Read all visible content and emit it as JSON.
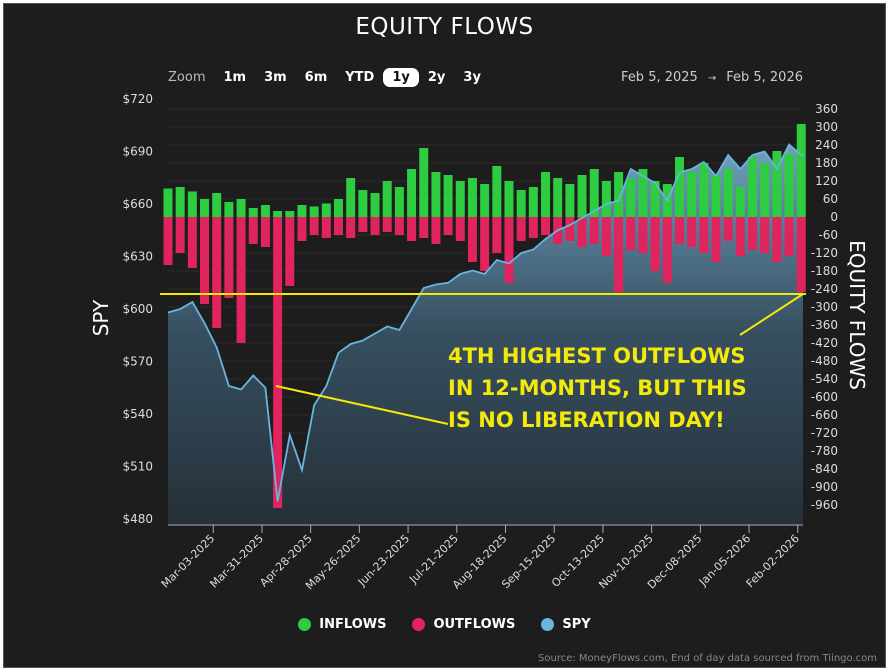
{
  "title": "EQUITY FLOWS",
  "zoom": {
    "label": "Zoom",
    "buttons": [
      "1m",
      "3m",
      "6m",
      "YTD",
      "1y",
      "2y",
      "3y"
    ],
    "active": "1y"
  },
  "range": {
    "from": "Feb 5, 2025",
    "arrow": "→",
    "to": "Feb 5, 2026"
  },
  "legend": [
    {
      "label": "INFLOWS",
      "color": "#2ecc40"
    },
    {
      "label": "OUTFLOWS",
      "color": "#e0245e"
    },
    {
      "label": "SPY",
      "color": "#6ab4e0"
    }
  ],
  "annotation": {
    "lines": [
      "4TH HIGHEST OUTFLOWS",
      "IN 12-MONTHS, BUT THIS",
      "IS NO LIBERATION DAY!"
    ],
    "color": "#f5e90a",
    "threshold": -250
  },
  "source": "Source: MoneyFlows.com, End of day data sourced from Tiingo.com",
  "chart_data": {
    "type": "bar+area",
    "title": "EQUITY FLOWS",
    "left_axis": {
      "label": "SPY",
      "ticks": [
        "$720",
        "$690",
        "$660",
        "$630",
        "$600",
        "$570",
        "$540",
        "$510",
        "$480"
      ],
      "range": [
        480,
        720
      ]
    },
    "right_axis": {
      "label": "EQUITY FLOWS",
      "ticks": [
        360,
        300,
        240,
        180,
        120,
        60,
        0,
        -60,
        -120,
        -180,
        -240,
        -300,
        -360,
        -420,
        -480,
        -540,
        -600,
        -660,
        -720,
        -780,
        -840,
        -900,
        -960
      ],
      "range": [
        -960,
        360
      ]
    },
    "x_ticks": [
      "Mar-03-2025",
      "Mar-31-2025",
      "Apr-28-2025",
      "May-26-2025",
      "Jun-23-2025",
      "Jul-21-2025",
      "Aug-18-2025",
      "Sep-15-2025",
      "Oct-13-2025",
      "Nov-10-2025",
      "Dec-08-2025",
      "Jan-05-2026",
      "Feb-02-2026"
    ],
    "grid": true,
    "legend_position": "bottom",
    "points": [
      {
        "date": "2025-02-05",
        "spy": 598,
        "inflow": 95,
        "outflow": -160
      },
      {
        "date": "2025-02-12",
        "spy": 600,
        "inflow": 100,
        "outflow": -120
      },
      {
        "date": "2025-02-19",
        "spy": 604,
        "inflow": 85,
        "outflow": -170
      },
      {
        "date": "2025-02-26",
        "spy": 592,
        "inflow": 60,
        "outflow": -290
      },
      {
        "date": "2025-03-05",
        "spy": 578,
        "inflow": 80,
        "outflow": -370
      },
      {
        "date": "2025-03-12",
        "spy": 556,
        "inflow": 50,
        "outflow": -270
      },
      {
        "date": "2025-03-19",
        "spy": 554,
        "inflow": 60,
        "outflow": -420
      },
      {
        "date": "2025-03-26",
        "spy": 562,
        "inflow": 30,
        "outflow": -90
      },
      {
        "date": "2025-04-02",
        "spy": 555,
        "inflow": 40,
        "outflow": -100
      },
      {
        "date": "2025-04-09",
        "spy": 490,
        "inflow": 20,
        "outflow": -970
      },
      {
        "date": "2025-04-16",
        "spy": 528,
        "inflow": 20,
        "outflow": -230
      },
      {
        "date": "2025-04-23",
        "spy": 508,
        "inflow": 40,
        "outflow": -80
      },
      {
        "date": "2025-04-30",
        "spy": 545,
        "inflow": 35,
        "outflow": -60
      },
      {
        "date": "2025-05-07",
        "spy": 556,
        "inflow": 45,
        "outflow": -70
      },
      {
        "date": "2025-05-14",
        "spy": 575,
        "inflow": 60,
        "outflow": -60
      },
      {
        "date": "2025-05-21",
        "spy": 580,
        "inflow": 130,
        "outflow": -70
      },
      {
        "date": "2025-05-28",
        "spy": 582,
        "inflow": 90,
        "outflow": -50
      },
      {
        "date": "2025-06-04",
        "spy": 586,
        "inflow": 80,
        "outflow": -60
      },
      {
        "date": "2025-06-11",
        "spy": 590,
        "inflow": 120,
        "outflow": -50
      },
      {
        "date": "2025-06-18",
        "spy": 588,
        "inflow": 100,
        "outflow": -60
      },
      {
        "date": "2025-06-25",
        "spy": 600,
        "inflow": 160,
        "outflow": -80
      },
      {
        "date": "2025-07-02",
        "spy": 612,
        "inflow": 230,
        "outflow": -70
      },
      {
        "date": "2025-07-09",
        "spy": 614,
        "inflow": 150,
        "outflow": -90
      },
      {
        "date": "2025-07-16",
        "spy": 615,
        "inflow": 140,
        "outflow": -60
      },
      {
        "date": "2025-07-23",
        "spy": 620,
        "inflow": 120,
        "outflow": -80
      },
      {
        "date": "2025-07-30",
        "spy": 622,
        "inflow": 130,
        "outflow": -150
      },
      {
        "date": "2025-08-06",
        "spy": 620,
        "inflow": 110,
        "outflow": -180
      },
      {
        "date": "2025-08-13",
        "spy": 628,
        "inflow": 170,
        "outflow": -120
      },
      {
        "date": "2025-08-20",
        "spy": 626,
        "inflow": 120,
        "outflow": -220
      },
      {
        "date": "2025-08-27",
        "spy": 632,
        "inflow": 90,
        "outflow": -80
      },
      {
        "date": "2025-09-03",
        "spy": 634,
        "inflow": 100,
        "outflow": -70
      },
      {
        "date": "2025-09-10",
        "spy": 640,
        "inflow": 150,
        "outflow": -60
      },
      {
        "date": "2025-09-17",
        "spy": 645,
        "inflow": 130,
        "outflow": -90
      },
      {
        "date": "2025-09-24",
        "spy": 648,
        "inflow": 110,
        "outflow": -80
      },
      {
        "date": "2025-10-01",
        "spy": 652,
        "inflow": 140,
        "outflow": -100
      },
      {
        "date": "2025-10-08",
        "spy": 656,
        "inflow": 160,
        "outflow": -90
      },
      {
        "date": "2025-10-15",
        "spy": 660,
        "inflow": 120,
        "outflow": -130
      },
      {
        "date": "2025-10-22",
        "spy": 662,
        "inflow": 150,
        "outflow": -250
      },
      {
        "date": "2025-10-29",
        "spy": 680,
        "inflow": 130,
        "outflow": -110
      },
      {
        "date": "2025-11-05",
        "spy": 676,
        "inflow": 160,
        "outflow": -120
      },
      {
        "date": "2025-11-12",
        "spy": 672,
        "inflow": 120,
        "outflow": -180
      },
      {
        "date": "2025-11-19",
        "spy": 662,
        "inflow": 110,
        "outflow": -220
      },
      {
        "date": "2025-11-26",
        "spy": 678,
        "inflow": 200,
        "outflow": -90
      },
      {
        "date": "2025-12-03",
        "spy": 680,
        "inflow": 150,
        "outflow": -100
      },
      {
        "date": "2025-12-10",
        "spy": 684,
        "inflow": 180,
        "outflow": -120
      },
      {
        "date": "2025-12-17",
        "spy": 676,
        "inflow": 140,
        "outflow": -150
      },
      {
        "date": "2025-12-24",
        "spy": 688,
        "inflow": 160,
        "outflow": -80
      },
      {
        "date": "2025-12-31",
        "spy": 680,
        "inflow": 100,
        "outflow": -130
      },
      {
        "date": "2026-01-07",
        "spy": 688,
        "inflow": 200,
        "outflow": -110
      },
      {
        "date": "2026-01-14",
        "spy": 690,
        "inflow": 180,
        "outflow": -120
      },
      {
        "date": "2026-01-21",
        "spy": 680,
        "inflow": 220,
        "outflow": -150
      },
      {
        "date": "2026-01-28",
        "spy": 694,
        "inflow": 210,
        "outflow": -130
      },
      {
        "date": "2026-02-04",
        "spy": 688,
        "inflow": 310,
        "outflow": -250
      }
    ]
  }
}
